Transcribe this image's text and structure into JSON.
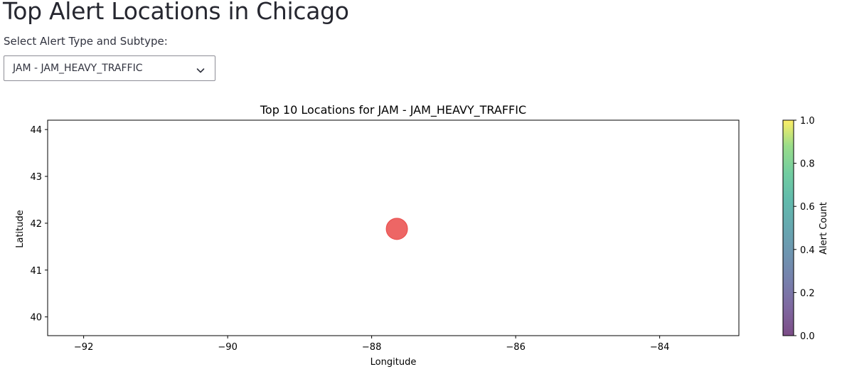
{
  "header": {
    "title": "Top Alert Locations in Chicago"
  },
  "filter": {
    "label": "Select Alert Type and Subtype:",
    "selected": "JAM - JAM_HEAVY_TRAFFIC",
    "icon": "chevron-down-icon"
  },
  "chart_data": {
    "type": "scatter",
    "title": "Top 10 Locations for JAM - JAM_HEAVY_TRAFFIC",
    "xlabel": "Longitude",
    "ylabel": "Latitude",
    "xlim": [
      -92.5,
      -82.9
    ],
    "ylim": [
      39.6,
      44.2
    ],
    "xticks": [
      -92,
      -90,
      -88,
      -86,
      -84
    ],
    "yticks": [
      40,
      41,
      42,
      43,
      44
    ],
    "points": [
      {
        "x": -87.65,
        "y": 41.88
      }
    ],
    "point_color": "#e8403f",
    "point_alpha": 0.8,
    "grid": false,
    "colorbar": {
      "label": "Alert Count",
      "ticks": [
        "0.0",
        "0.2",
        "0.4",
        "0.6",
        "0.8",
        "1.0"
      ],
      "colormap": "viridis",
      "alpha": 0.7
    }
  }
}
